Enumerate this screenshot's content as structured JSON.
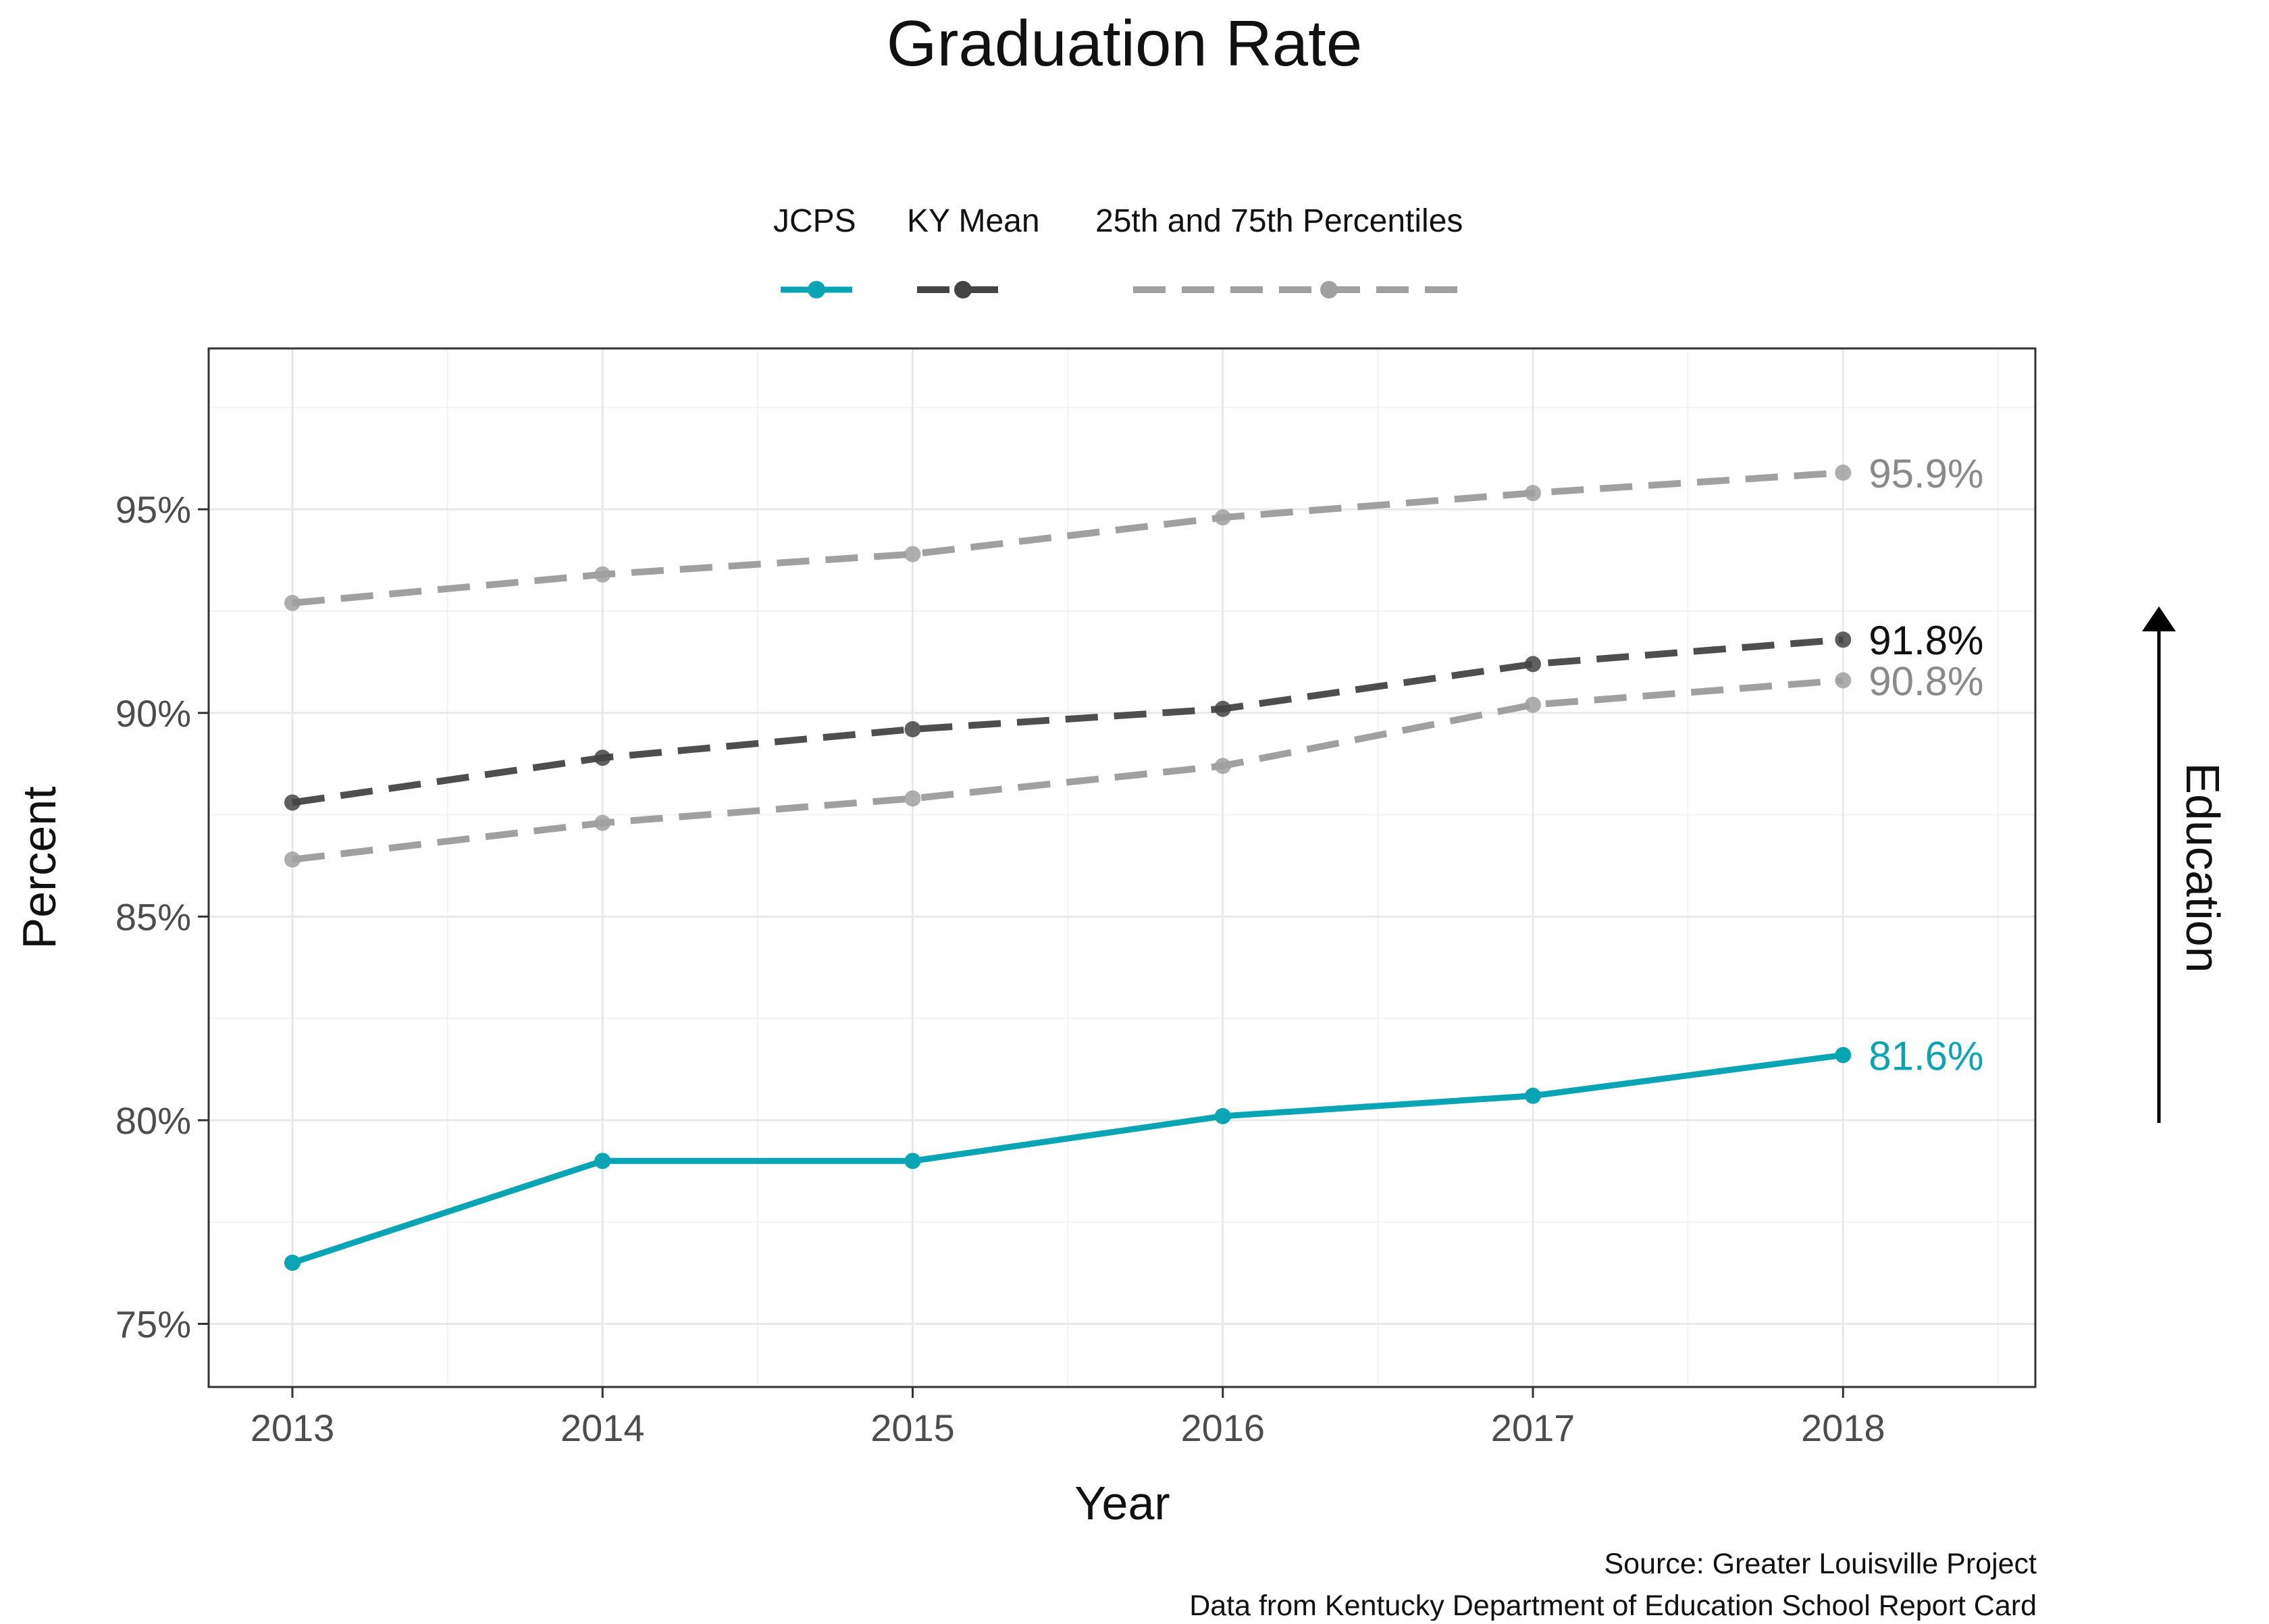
{
  "chart_data": {
    "type": "line",
    "title": "Graduation Rate",
    "xlabel": "Year",
    "ylabel": "Percent",
    "side_label": "Education",
    "x": [
      2013,
      2014,
      2015,
      2016,
      2017,
      2018
    ],
    "xlim": [
      2012.73,
      2018.62
    ],
    "ylim": [
      73.45,
      98.95
    ],
    "y_ticks": [
      75,
      80,
      85,
      90,
      95
    ],
    "y_tick_suffix": "%",
    "grid": true,
    "legend_position": "top",
    "legend": [
      {
        "label": "JCPS",
        "color": "#0aa5b5",
        "dashed": false
      },
      {
        "label": "KY Mean",
        "color": "#444444",
        "dashed": true
      },
      {
        "label": "25th and 75th Percentiles",
        "color": "#a0a0a0",
        "dashed": true
      }
    ],
    "series": [
      {
        "name": "JCPS",
        "color": "#0aa5b5",
        "dashed": false,
        "values": [
          76.5,
          79.0,
          79.0,
          80.1,
          80.6,
          81.6
        ],
        "end_label": "81.6%"
      },
      {
        "name": "KY Mean",
        "color": "#444444",
        "dashed": true,
        "values": [
          87.8,
          88.9,
          89.6,
          90.1,
          91.2,
          91.8
        ],
        "end_label": "91.8%",
        "end_label_color": "#111111"
      },
      {
        "name": "75th Percentile",
        "color": "#a0a0a0",
        "dashed": true,
        "values": [
          92.7,
          93.4,
          93.9,
          94.8,
          95.4,
          95.9
        ],
        "end_label": "95.9%",
        "end_label_color": "#8a8a8a"
      },
      {
        "name": "25th Percentile",
        "color": "#a0a0a0",
        "dashed": true,
        "values": [
          86.4,
          87.3,
          87.9,
          88.7,
          90.2,
          90.8
        ],
        "end_label": "90.8%",
        "end_label_color": "#8a8a8a"
      }
    ],
    "source_lines": [
      "Source: Greater Louisville Project",
      "Data from Kentucky Department of Education School Report Card"
    ]
  }
}
